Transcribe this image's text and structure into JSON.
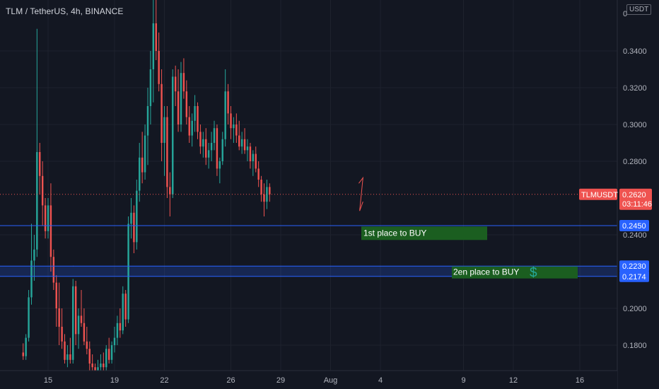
{
  "header": {
    "symbol_line": "TLM / TetherUS, 4h, BINANCE",
    "currency": "USDT"
  },
  "chart_data": {
    "type": "candlestick",
    "title": "TLM / TetherUS, 4h, BINANCE",
    "ylim": [
      0.1675,
      0.3825
    ],
    "y_ticks": [
      {
        "v": 0.18,
        "label": "0.1800"
      },
      {
        "v": 0.2,
        "label": "0.2000"
      },
      {
        "v": 0.24,
        "label": "0.2400"
      },
      {
        "v": 0.28,
        "label": "0.2800"
      },
      {
        "v": 0.3,
        "label": "0.3000"
      },
      {
        "v": 0.32,
        "label": "0.3200"
      },
      {
        "v": 0.34,
        "label": "0.3400"
      }
    ],
    "top_partial_tick": "0",
    "x_ticks": [
      {
        "label": "15",
        "d": 15
      },
      {
        "label": "19",
        "d": 19
      },
      {
        "label": "22",
        "d": 22
      },
      {
        "label": "26",
        "d": 26
      },
      {
        "label": "29",
        "d": 29
      },
      {
        "label": "Aug",
        "d": 32
      },
      {
        "label": "4",
        "d": 35
      },
      {
        "label": "9",
        "d": 40
      },
      {
        "label": "12",
        "d": 43
      },
      {
        "label": "16",
        "d": 47
      }
    ],
    "candles_per_day": 6,
    "first_candle_day": 13.5,
    "candles": [
      [
        0.176,
        0.181,
        0.172,
        0.174
      ],
      [
        0.174,
        0.186,
        0.172,
        0.184
      ],
      [
        0.184,
        0.21,
        0.182,
        0.206
      ],
      [
        0.206,
        0.246,
        0.202,
        0.226
      ],
      [
        0.226,
        0.24,
        0.215,
        0.232
      ],
      [
        0.232,
        0.352,
        0.228,
        0.285
      ],
      [
        0.285,
        0.29,
        0.262,
        0.272
      ],
      [
        0.272,
        0.28,
        0.245,
        0.256
      ],
      [
        0.256,
        0.26,
        0.238,
        0.242
      ],
      [
        0.242,
        0.26,
        0.238,
        0.256
      ],
      [
        0.256,
        0.268,
        0.22,
        0.228
      ],
      [
        0.228,
        0.232,
        0.21,
        0.214
      ],
      [
        0.214,
        0.218,
        0.19,
        0.2
      ],
      [
        0.2,
        0.214,
        0.18,
        0.19
      ],
      [
        0.19,
        0.2,
        0.178,
        0.182
      ],
      [
        0.182,
        0.186,
        0.17,
        0.172
      ],
      [
        0.172,
        0.18,
        0.168,
        0.175
      ],
      [
        0.175,
        0.184,
        0.17,
        0.172
      ],
      [
        0.172,
        0.216,
        0.17,
        0.212
      ],
      [
        0.212,
        0.215,
        0.18,
        0.186
      ],
      [
        0.186,
        0.2,
        0.178,
        0.196
      ],
      [
        0.196,
        0.21,
        0.19,
        0.192
      ],
      [
        0.192,
        0.2,
        0.18,
        0.182
      ],
      [
        0.182,
        0.19,
        0.175,
        0.178
      ],
      [
        0.178,
        0.182,
        0.166,
        0.17
      ],
      [
        0.17,
        0.175,
        0.165,
        0.168
      ],
      [
        0.168,
        0.17,
        0.164,
        0.166
      ],
      [
        0.166,
        0.172,
        0.164,
        0.168
      ],
      [
        0.168,
        0.175,
        0.165,
        0.17
      ],
      [
        0.17,
        0.176,
        0.166,
        0.168
      ],
      [
        0.168,
        0.18,
        0.166,
        0.178
      ],
      [
        0.178,
        0.184,
        0.17,
        0.172
      ],
      [
        0.172,
        0.182,
        0.17,
        0.18
      ],
      [
        0.18,
        0.19,
        0.176,
        0.184
      ],
      [
        0.184,
        0.196,
        0.18,
        0.192
      ],
      [
        0.192,
        0.2,
        0.184,
        0.188
      ],
      [
        0.188,
        0.212,
        0.186,
        0.208
      ],
      [
        0.208,
        0.21,
        0.19,
        0.194
      ],
      [
        0.194,
        0.25,
        0.192,
        0.246
      ],
      [
        0.246,
        0.26,
        0.238,
        0.252
      ],
      [
        0.252,
        0.256,
        0.23,
        0.236
      ],
      [
        0.236,
        0.27,
        0.232,
        0.264
      ],
      [
        0.264,
        0.29,
        0.258,
        0.282
      ],
      [
        0.282,
        0.296,
        0.268,
        0.274
      ],
      [
        0.274,
        0.3,
        0.27,
        0.294
      ],
      [
        0.294,
        0.32,
        0.278,
        0.31
      ],
      [
        0.31,
        0.34,
        0.3,
        0.33
      ],
      [
        0.33,
        0.3825,
        0.312,
        0.355
      ],
      [
        0.355,
        0.372,
        0.335,
        0.34
      ],
      [
        0.34,
        0.35,
        0.318,
        0.322
      ],
      [
        0.322,
        0.33,
        0.28,
        0.29
      ],
      [
        0.29,
        0.31,
        0.272,
        0.304
      ],
      [
        0.304,
        0.31,
        0.26,
        0.266
      ],
      [
        0.266,
        0.274,
        0.25,
        0.262
      ],
      [
        0.262,
        0.33,
        0.26,
        0.326
      ],
      [
        0.326,
        0.332,
        0.31,
        0.318
      ],
      [
        0.318,
        0.33,
        0.296,
        0.3
      ],
      [
        0.3,
        0.334,
        0.296,
        0.328
      ],
      [
        0.328,
        0.336,
        0.314,
        0.318
      ],
      [
        0.318,
        0.324,
        0.3,
        0.304
      ],
      [
        0.304,
        0.31,
        0.29,
        0.294
      ],
      [
        0.294,
        0.306,
        0.288,
        0.302
      ],
      [
        0.302,
        0.316,
        0.296,
        0.31
      ],
      [
        0.31,
        0.312,
        0.292,
        0.296
      ],
      [
        0.296,
        0.3,
        0.284,
        0.288
      ],
      [
        0.288,
        0.296,
        0.282,
        0.292
      ],
      [
        0.292,
        0.298,
        0.278,
        0.282
      ],
      [
        0.282,
        0.29,
        0.276,
        0.286
      ],
      [
        0.286,
        0.296,
        0.28,
        0.29
      ],
      [
        0.29,
        0.302,
        0.286,
        0.298
      ],
      [
        0.298,
        0.3,
        0.272,
        0.276
      ],
      [
        0.276,
        0.282,
        0.268,
        0.28
      ],
      [
        0.28,
        0.296,
        0.278,
        0.292
      ],
      [
        0.292,
        0.33,
        0.288,
        0.318
      ],
      [
        0.318,
        0.322,
        0.3,
        0.306
      ],
      [
        0.306,
        0.31,
        0.292,
        0.298
      ],
      [
        0.298,
        0.304,
        0.29,
        0.3
      ],
      [
        0.3,
        0.306,
        0.29,
        0.294
      ],
      [
        0.294,
        0.302,
        0.286,
        0.288
      ],
      [
        0.288,
        0.296,
        0.284,
        0.292
      ],
      [
        0.292,
        0.298,
        0.284,
        0.286
      ],
      [
        0.286,
        0.292,
        0.28,
        0.288
      ],
      [
        0.288,
        0.29,
        0.276,
        0.28
      ],
      [
        0.28,
        0.286,
        0.272,
        0.284
      ],
      [
        0.284,
        0.288,
        0.274,
        0.276
      ],
      [
        0.276,
        0.28,
        0.266,
        0.27
      ],
      [
        0.27,
        0.272,
        0.258,
        0.262
      ],
      [
        0.262,
        0.268,
        0.25,
        0.258
      ],
      [
        0.258,
        0.27,
        0.254,
        0.266
      ],
      [
        0.266,
        0.268,
        0.258,
        0.262
      ]
    ],
    "last_price": {
      "label": "TLMUSDT",
      "price_label": "0.2620",
      "countdown": "03:11:46",
      "color": "#ef5350"
    },
    "levels": [
      {
        "price_label": "0.2450",
        "color": "#2962ff"
      },
      {
        "price_label": "0.2230",
        "color": "#2962ff"
      },
      {
        "price_label": "0.2174",
        "color": "#2962ff"
      }
    ],
    "zone_boxes": [
      {
        "text": "1st place to BUY",
        "color": "#1b5e20"
      },
      {
        "text": "2en place to BUY",
        "color": "#1b5e20",
        "icon": "$"
      }
    ],
    "colors": {
      "up": "#26a69a",
      "down": "#ef5350",
      "background": "#131722",
      "grid": "#1e222d"
    }
  }
}
